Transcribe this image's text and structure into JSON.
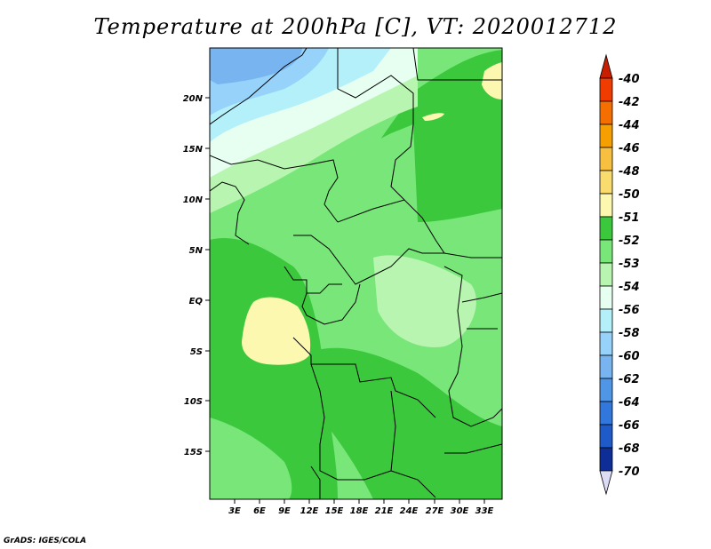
{
  "title": "Temperature at 200hPa [C], VT: 2020012712",
  "credit": "GrADS: IGES/COLA",
  "map": {
    "lat_labels": [
      "20N",
      "15N",
      "10N",
      "5N",
      "EQ",
      "5S",
      "10S",
      "15S"
    ],
    "lon_labels": [
      "3E",
      "6E",
      "9E",
      "12E",
      "15E",
      "18E",
      "21E",
      "24E",
      "27E",
      "30E",
      "33E"
    ]
  },
  "colorbar": {
    "labels": [
      "-40",
      "-42",
      "-44",
      "-46",
      "-48",
      "-50",
      "-51",
      "-52",
      "-53",
      "-54",
      "-56",
      "-58",
      "-60",
      "-62",
      "-64",
      "-66",
      "-68",
      "-70"
    ],
    "colors": {
      "above_-40": "#c81e00",
      "-40_-42": "#f03c00",
      "-42_-44": "#f56e00",
      "-44_-46": "#f5a000",
      "-46_-48": "#f8c040",
      "-48_-50": "#fadc6e",
      "-50_-51": "#fdf8b0",
      "-51_-52": "#3cc83c",
      "-52_-53": "#78e678",
      "-53_-54": "#b8f5b0",
      "-54_-56": "#e6fff0",
      "-56_-58": "#b4f0fa",
      "-58_-60": "#96d2fa",
      "-60_-62": "#78b4f0",
      "-62_-64": "#5096e6",
      "-64_-66": "#3278dc",
      "-66_-68": "#1e5ac8",
      "-68_-70": "#0f2d96",
      "below_-70": "#dcdcf5"
    }
  }
}
